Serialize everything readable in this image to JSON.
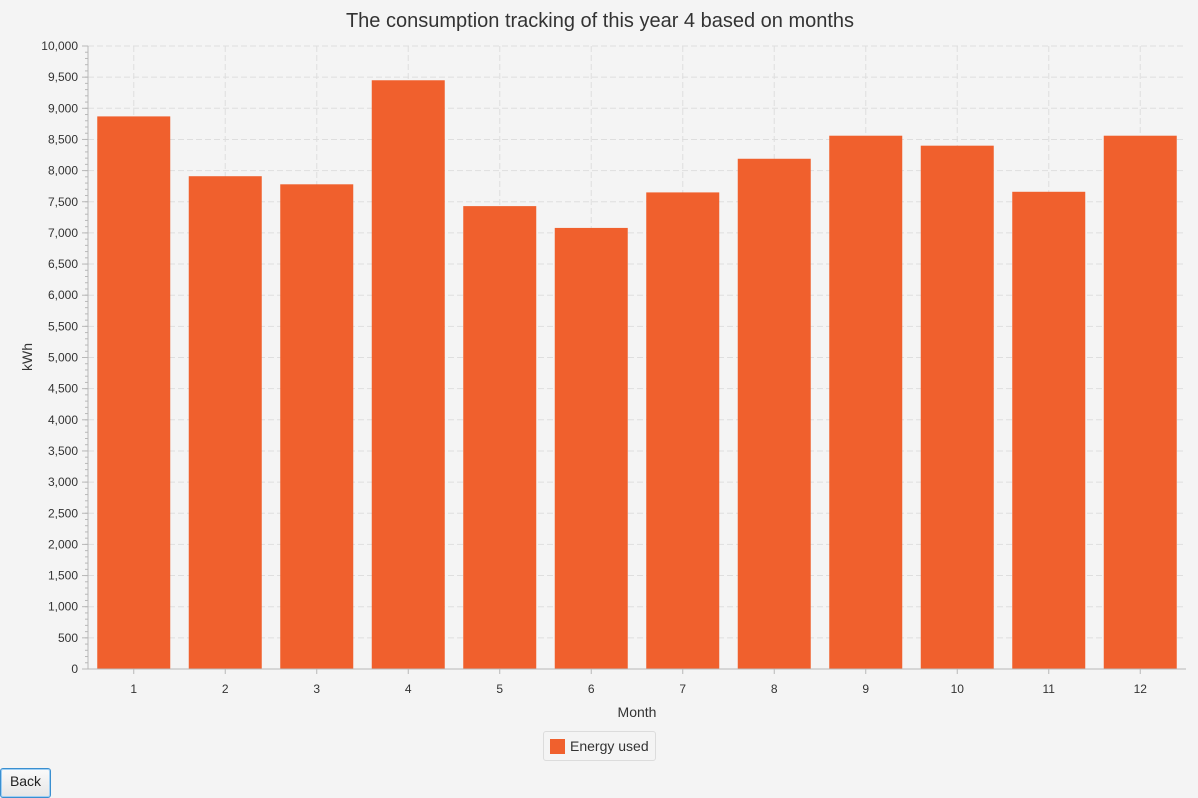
{
  "chart_data": {
    "type": "bar",
    "title": "The consumption tracking of this year 4 based on months",
    "xlabel": "Month",
    "ylabel": "kWh",
    "categories": [
      "1",
      "2",
      "3",
      "4",
      "5",
      "6",
      "7",
      "8",
      "9",
      "10",
      "11",
      "12"
    ],
    "series": [
      {
        "name": "Energy used",
        "values": [
          8870,
          7910,
          7780,
          9450,
          7430,
          7080,
          7650,
          8190,
          8560,
          8400,
          7660,
          8560
        ]
      }
    ],
    "ylim": [
      0,
      10000
    ],
    "ytick_step": 500,
    "yticks": [
      "0",
      "500",
      "1,000",
      "1,500",
      "2,000",
      "2,500",
      "3,000",
      "3,500",
      "4,000",
      "4,500",
      "5,000",
      "5,500",
      "6,000",
      "6,500",
      "7,000",
      "7,500",
      "8,000",
      "8,500",
      "9,000",
      "9,500",
      "10,000"
    ],
    "grid": true,
    "legend_position": "bottom-center",
    "bar_color": "#f0602d"
  },
  "legend": {
    "label": "Energy used"
  },
  "controls": {
    "back_label": "Back"
  }
}
